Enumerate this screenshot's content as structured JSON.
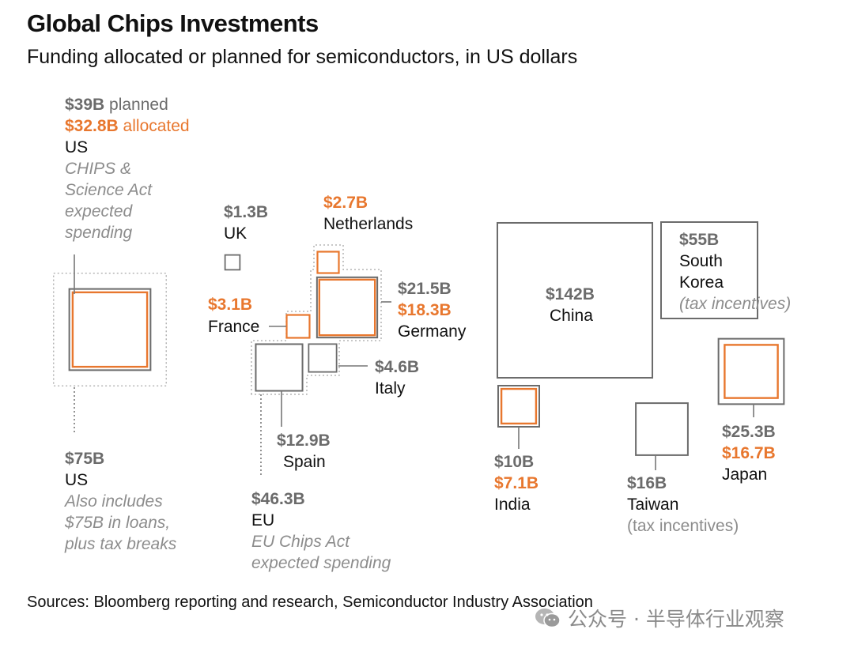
{
  "header": {
    "title": "Global Chips Investments",
    "subtitle": "Funding allocated or planned for semiconductors, in US dollars"
  },
  "footer": {
    "source": "Sources: Bloomberg reporting and research, Semiconductor Industry Association",
    "watermark": "公众号 · 半导体行业观察"
  },
  "colors": {
    "planned": "#6b6b6b",
    "allocated": "#e8772e",
    "outer_total": "#a8a8a8",
    "text": "#111111",
    "note": "#8c8c8c"
  },
  "chart_data": {
    "type": "proportional-squares",
    "title": "Global Chips Investments",
    "subtitle": "Funding allocated or planned for semiconductors, in US dollars",
    "units": "billion US dollars",
    "groups": [
      {
        "id": "us_chips",
        "country": "US",
        "planned": 39,
        "allocated": 32.8,
        "planned_label": "$39B",
        "planned_word": "planned",
        "allocated_label": "$32.8B",
        "allocated_word": "allocated",
        "note": [
          "CHIPS &",
          "Science Act",
          "expected",
          "spending"
        ]
      },
      {
        "id": "us_total",
        "country": "US",
        "total": 75,
        "label": "$75B",
        "note": [
          "Also includes",
          "$75B in loans,",
          "plus tax breaks"
        ]
      },
      {
        "id": "uk",
        "country": "UK",
        "planned": 1.3,
        "planned_label": "$1.3B"
      },
      {
        "id": "netherlands",
        "country": "Netherlands",
        "allocated": 2.7,
        "allocated_label": "$2.7B"
      },
      {
        "id": "france",
        "country": "France",
        "allocated": 3.1,
        "allocated_label": "$3.1B"
      },
      {
        "id": "germany",
        "country": "Germany",
        "planned": 21.5,
        "allocated": 18.3,
        "planned_label": "$21.5B",
        "allocated_label": "$18.3B"
      },
      {
        "id": "italy",
        "country": "Italy",
        "planned": 4.6,
        "planned_label": "$4.6B"
      },
      {
        "id": "spain",
        "country": "Spain",
        "planned": 12.9,
        "planned_label": "$12.9B"
      },
      {
        "id": "eu",
        "country": "EU",
        "total": 46.3,
        "label": "$46.3B",
        "note": [
          "EU Chips Act",
          "expected spending"
        ]
      },
      {
        "id": "china",
        "country": "China",
        "planned": 142,
        "planned_label": "$142B"
      },
      {
        "id": "south_korea",
        "country": [
          "South",
          "Korea"
        ],
        "planned": 55,
        "planned_label": "$55B",
        "note": "(tax incentives)"
      },
      {
        "id": "india",
        "country": "India",
        "planned": 10,
        "allocated": 7.1,
        "planned_label": "$10B",
        "allocated_label": "$7.1B"
      },
      {
        "id": "taiwan",
        "country": "Taiwan",
        "planned": 16,
        "planned_label": "$16B",
        "note": "(tax incentives)"
      },
      {
        "id": "japan",
        "country": "Japan",
        "planned": 25.3,
        "allocated": 16.7,
        "planned_label": "$25.3B",
        "allocated_label": "$16.7B"
      }
    ]
  }
}
